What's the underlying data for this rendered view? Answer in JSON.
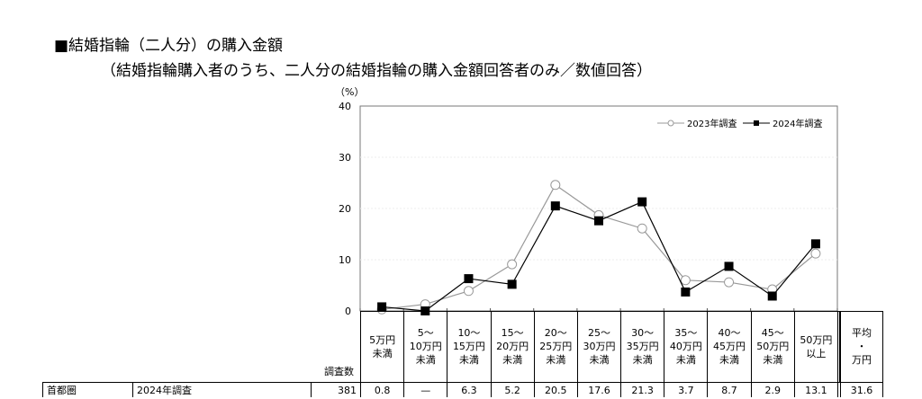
{
  "title": "■結婚指輪（二人分）の購入金額",
  "subtitle": "（結婚指輪購入者のうち、二人分の結婚指輪の購入金額回答者のみ／数値回答）",
  "chart_data": {
    "type": "line",
    "ylabel": "（%）",
    "ylim": [
      0,
      40
    ],
    "yticks": [
      0,
      10,
      20,
      30,
      40
    ],
    "grid": true,
    "legend_position": "top-right",
    "categories": [
      "5万円\n未満",
      "5～\n10万円\n未満",
      "10～\n15万円\n未満",
      "15～\n20万円\n未満",
      "20～\n25万円\n未満",
      "25～\n30万円\n未満",
      "30～\n35万円\n未満",
      "35～\n40万円\n未満",
      "40～\n45万円\n未満",
      "45～\n50万円\n未満",
      "50万円\n以上"
    ],
    "series": [
      {
        "name": "2023年調査",
        "marker": "open-circle",
        "color": "#999999",
        "values": [
          0.3,
          1.3,
          3.9,
          9.1,
          24.6,
          18.7,
          16.1,
          6.0,
          5.6,
          4.2,
          11.2
        ]
      },
      {
        "name": "2024年調査",
        "marker": "filled-square",
        "color": "#000000",
        "values": [
          0.8,
          0,
          6.3,
          5.2,
          20.5,
          17.6,
          21.3,
          3.7,
          8.7,
          2.9,
          13.1
        ]
      }
    ]
  },
  "table": {
    "count_header": "調査数",
    "avg_header": "平均\n・\n万円",
    "rows": [
      {
        "region": "首都圏",
        "survey": "2024年調査",
        "count": "381",
        "values": [
          "0.8",
          "—",
          "6.3",
          "5.2",
          "20.5",
          "17.6",
          "21.3",
          "3.7",
          "8.7",
          "2.9",
          "13.1"
        ],
        "avg": "31.6"
      }
    ]
  }
}
